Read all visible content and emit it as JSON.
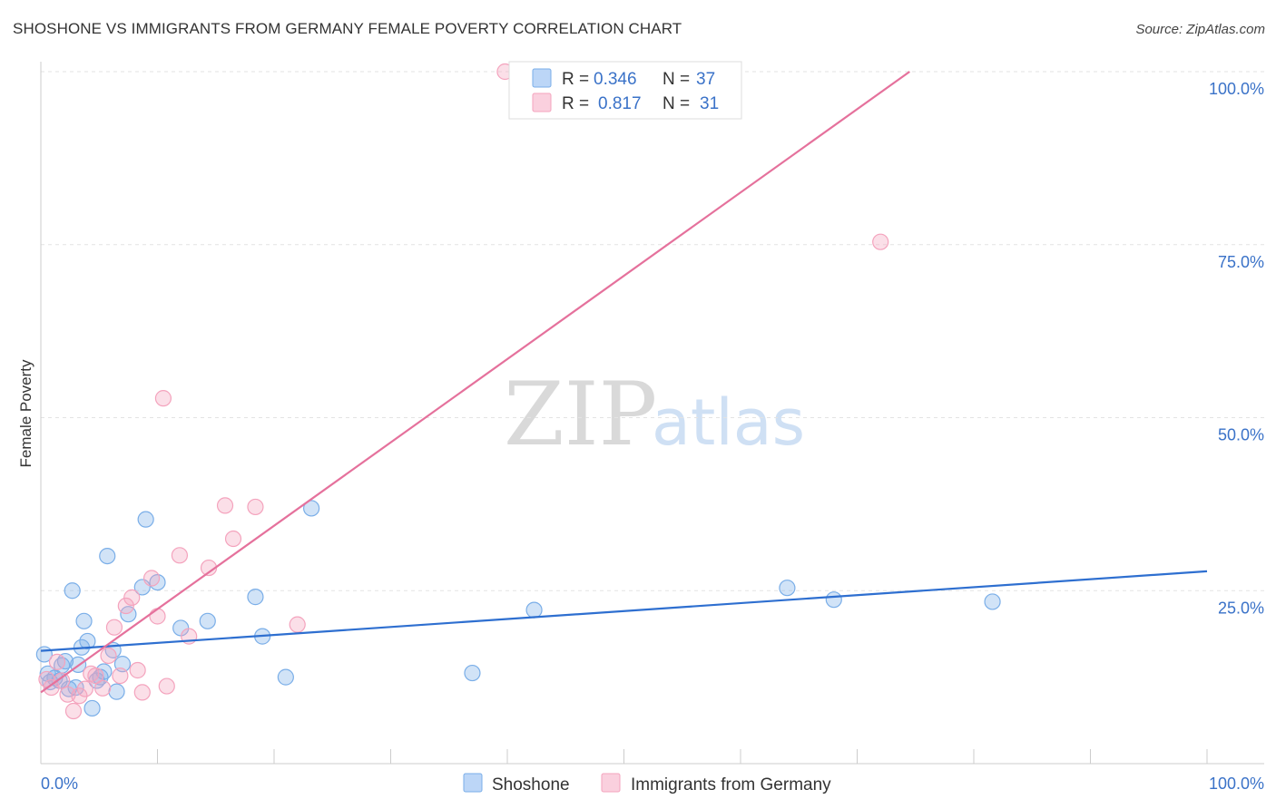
{
  "title": "SHOSHONE VS IMMIGRANTS FROM GERMANY FEMALE POVERTY CORRELATION CHART",
  "source": "Source: ZipAtlas.com",
  "watermark": {
    "zip": "ZIP",
    "atlas": "atlas"
  },
  "legend": {
    "r_label": "R =",
    "n_label": "N =",
    "entries": [
      {
        "r": "0.346",
        "n": "37"
      },
      {
        "r": "0.817",
        "n": "31"
      }
    ]
  },
  "chart_data": {
    "type": "scatter",
    "title": "SHOSHONE VS IMMIGRANTS FROM GERMANY FEMALE POVERTY CORRELATION CHART",
    "xlabel": "",
    "ylabel": "Female Poverty",
    "xlim": [
      0,
      100
    ],
    "ylim": [
      0,
      100
    ],
    "x_tick_labels": [
      "0.0%",
      "100.0%"
    ],
    "y_ticks": [
      25,
      50,
      75,
      100
    ],
    "y_tick_labels": [
      "25.0%",
      "50.0%",
      "75.0%",
      "100.0%"
    ],
    "grid": true,
    "series": [
      {
        "name": "Shoshone",
        "color": "#7aaee8",
        "line_color": "#2e6fd0",
        "trend": [
          [
            0,
            16.3
          ],
          [
            100,
            27.8
          ]
        ],
        "points": [
          [
            0.3,
            15.8
          ],
          [
            0.6,
            13.0
          ],
          [
            0.8,
            11.8
          ],
          [
            1.2,
            12.4
          ],
          [
            1.6,
            12.0
          ],
          [
            1.8,
            14.2
          ],
          [
            2.1,
            14.8
          ],
          [
            2.4,
            10.8
          ],
          [
            2.7,
            25.0
          ],
          [
            3.2,
            14.3
          ],
          [
            3.5,
            16.8
          ],
          [
            3.7,
            20.6
          ],
          [
            4.0,
            17.7
          ],
          [
            4.4,
            8.0
          ],
          [
            4.8,
            12.0
          ],
          [
            5.1,
            12.5
          ],
          [
            5.4,
            13.3
          ],
          [
            5.7,
            30.0
          ],
          [
            6.2,
            16.4
          ],
          [
            6.5,
            10.4
          ],
          [
            7.0,
            14.4
          ],
          [
            7.5,
            21.6
          ],
          [
            8.7,
            25.5
          ],
          [
            9.0,
            35.3
          ],
          [
            10.0,
            26.2
          ],
          [
            12.0,
            19.6
          ],
          [
            14.3,
            20.6
          ],
          [
            18.4,
            24.1
          ],
          [
            19.0,
            18.4
          ],
          [
            21.0,
            12.5
          ],
          [
            23.2,
            36.9
          ],
          [
            37.0,
            13.1
          ],
          [
            42.3,
            22.2
          ],
          [
            64.0,
            25.4
          ],
          [
            68.0,
            23.7
          ],
          [
            81.6,
            23.4
          ],
          [
            3.0,
            11.0
          ]
        ]
      },
      {
        "name": "Immigrants from Germany",
        "color": "#f4a3bd",
        "line_color": "#e5719c",
        "trend": [
          [
            0,
            10.3
          ],
          [
            74.5,
            100
          ]
        ],
        "points": [
          [
            0.5,
            12.2
          ],
          [
            0.9,
            11.0
          ],
          [
            1.4,
            14.7
          ],
          [
            1.8,
            12.0
          ],
          [
            2.3,
            10.0
          ],
          [
            2.8,
            7.6
          ],
          [
            3.3,
            9.8
          ],
          [
            3.8,
            10.8
          ],
          [
            4.3,
            13.0
          ],
          [
            4.7,
            12.7
          ],
          [
            5.3,
            10.9
          ],
          [
            5.8,
            15.6
          ],
          [
            6.3,
            19.7
          ],
          [
            6.8,
            12.7
          ],
          [
            7.3,
            22.8
          ],
          [
            7.8,
            24.0
          ],
          [
            8.3,
            13.5
          ],
          [
            8.7,
            10.3
          ],
          [
            9.5,
            26.8
          ],
          [
            10.0,
            21.3
          ],
          [
            10.5,
            52.8
          ],
          [
            10.8,
            11.2
          ],
          [
            11.9,
            30.1
          ],
          [
            12.7,
            18.4
          ],
          [
            14.4,
            28.3
          ],
          [
            15.8,
            37.3
          ],
          [
            16.5,
            32.5
          ],
          [
            18.4,
            37.1
          ],
          [
            22.0,
            20.1
          ],
          [
            39.8,
            100.0
          ],
          [
            72.0,
            75.4
          ]
        ]
      }
    ]
  }
}
